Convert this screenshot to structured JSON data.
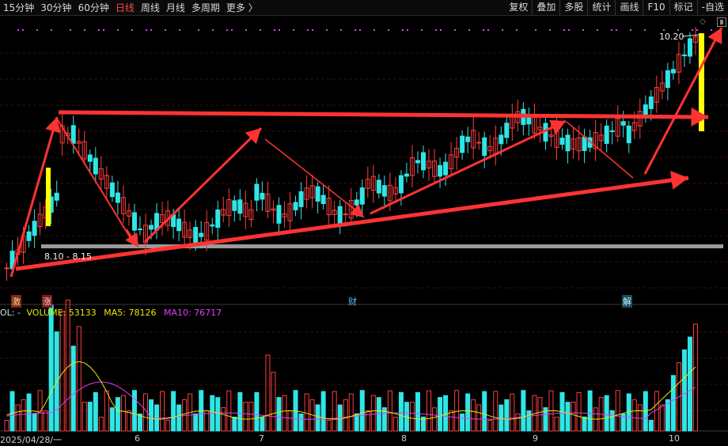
{
  "toolbar": {
    "periods": [
      "15分钟",
      "30分钟",
      "60分钟",
      "日线",
      "周线",
      "月线",
      "多周期",
      "更多 〉"
    ],
    "active_period": "日线",
    "tools": [
      "复权",
      "叠加",
      "多股",
      "统计",
      "画线",
      "F10",
      "标记",
      "-自选"
    ]
  },
  "price_panel": {
    "high_label": "10.20",
    "zone_label": "8.10 - 8.15",
    "event_markers": [
      "激",
      "涨",
      "财",
      "解"
    ]
  },
  "volume_panel": {
    "legend_prefix": "OL: -",
    "volume": "VOLUME: 53133",
    "ma5": "MA5: 78126",
    "ma10": "MA10: 76717"
  },
  "x_axis": {
    "start": "2025/04/28/一",
    "months": [
      "6",
      "7",
      "8",
      "9",
      "10"
    ]
  },
  "colors": {
    "up": "#ff3d3d",
    "down": "#2ee6e6",
    "arrow": "#ff3333",
    "highlight": "#ffff00",
    "ma5": "#e8e800",
    "ma10": "#e040fb",
    "zone": "#9a9a9a",
    "grid": "#3a0d0d"
  }
}
